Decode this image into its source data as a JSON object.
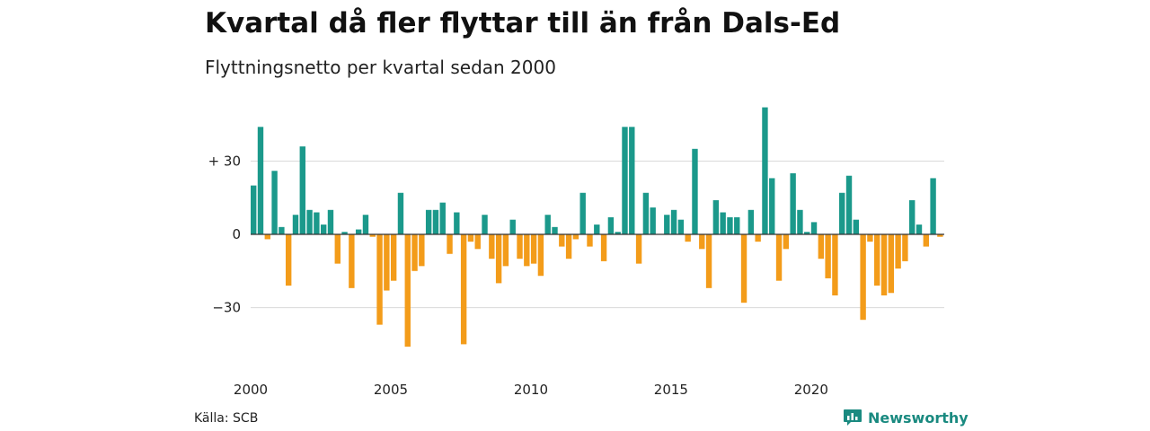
{
  "header": {
    "title": "Kvartal då fler flyttar till än från Dals-Ed",
    "subtitle": "Flyttningsnetto per kvartal sedan 2000"
  },
  "footer": {
    "source": "Källa: SCB",
    "brand": "Newsworthy"
  },
  "colors": {
    "positive": "#1b998b",
    "negative": "#f39c1a",
    "grid": "#d9d9d9",
    "axis": "#333333",
    "brand": "#1a8a80"
  },
  "chart_data": {
    "type": "bar",
    "x_start": "2000 Q1",
    "xtick_labels": [
      "2000",
      "2005",
      "2010",
      "2015",
      "2020"
    ],
    "ytick_labels": [
      "+ 30",
      "0",
      "−30"
    ],
    "yticks": [
      30,
      0,
      -30
    ],
    "ylim": [
      -47,
      52
    ],
    "grid": true,
    "values": [
      20,
      44,
      -2,
      26,
      3,
      -21,
      8,
      36,
      10,
      9,
      4,
      10,
      -12,
      1,
      -22,
      2,
      8,
      -1,
      -37,
      -23,
      -19,
      17,
      -46,
      -15,
      -13,
      10,
      10,
      13,
      -8,
      9,
      -45,
      -3,
      -6,
      8,
      -10,
      -20,
      -13,
      6,
      -10,
      -13,
      -12,
      -17,
      8,
      3,
      -5,
      -10,
      -2,
      17,
      -5,
      4,
      -11,
      7,
      1,
      44,
      44,
      -12,
      17,
      11,
      0,
      8,
      10,
      6,
      -3,
      35,
      -6,
      -22,
      14,
      9,
      7,
      7,
      -28,
      10,
      -3,
      52,
      23,
      -19,
      -6,
      25,
      10,
      1,
      5,
      -10,
      -18,
      -25,
      17,
      24,
      6,
      -35,
      -3,
      -21,
      -25,
      -24,
      -14,
      -11,
      14,
      4,
      -5,
      23,
      -1
    ]
  }
}
